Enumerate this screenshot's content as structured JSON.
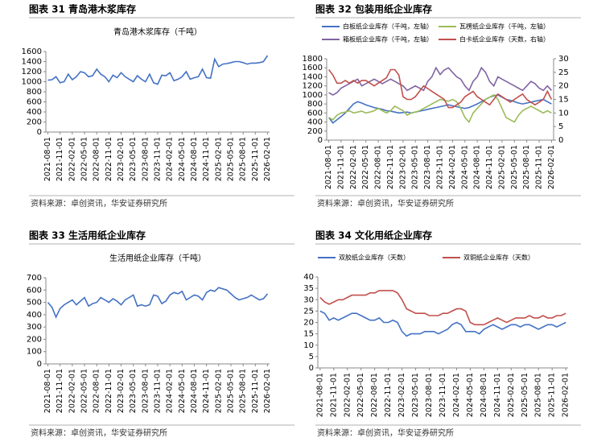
{
  "chart_data": [
    {
      "type": "line",
      "heading": "图表 31 青岛港木浆库存",
      "title": "青岛港木浆库存（千吨）",
      "source": "资料来源：卓创资讯，华安证券研究所",
      "categories": [
        "2021-08-01",
        null,
        null,
        "2021-11-01",
        null,
        null,
        "2022-02-01",
        null,
        null,
        "2022-05-01",
        null,
        null,
        "2022-08-01",
        null,
        null,
        "2022-11-01",
        null,
        null,
        "2023-02-01",
        null,
        null,
        "2023-05-01",
        null,
        null,
        "2023-08-01",
        null,
        null,
        "2023-11-01",
        null,
        null,
        "2024-02-01",
        null,
        null,
        "2024-05-01",
        null,
        null,
        "2024-08-01",
        null,
        null,
        "2024-11-01",
        null,
        null,
        "2025-02-01",
        null,
        null,
        "2025-05-01",
        null,
        null,
        "2025-08-01",
        null,
        null,
        "2025-11-01",
        null,
        null,
        "2026-02-01"
      ],
      "series": [
        {
          "name": "青岛港木浆库存",
          "color": "#4472c4",
          "values": [
            1030,
            1040,
            1100,
            980,
            1000,
            1150,
            1040,
            1100,
            1200,
            1180,
            1100,
            1120,
            1250,
            1150,
            1100,
            1000,
            1130,
            1080,
            1180,
            1100,
            1050,
            1000,
            1120,
            1050,
            1000,
            1150,
            980,
            950,
            1130,
            1120,
            1180,
            1020,
            1050,
            1100,
            1200,
            1050,
            1080,
            1100,
            1250,
            1080,
            1070,
            1450,
            1300,
            1350,
            1360,
            1380,
            1400,
            1400,
            1380,
            1350,
            1370,
            1370,
            1380,
            1400,
            1520
          ]
        }
      ],
      "ylim": [
        0,
        1600
      ],
      "yticks": [
        0,
        200,
        400,
        600,
        800,
        1000,
        1200,
        1400,
        1600
      ]
    },
    {
      "type": "line",
      "heading": "图表 32 包装用纸企业库存",
      "source": "资料来源：卓创资讯，华安证券研究所",
      "categories": [
        "2021-08-01",
        null,
        null,
        "2021-11-01",
        null,
        null,
        "2022-02-01",
        null,
        null,
        "2022-05-01",
        null,
        null,
        "2022-08-01",
        null,
        null,
        "2022-11-01",
        null,
        null,
        "2023-02-01",
        null,
        null,
        "2023-05-01",
        null,
        null,
        "2023-08-01",
        null,
        null,
        "2023-11-01",
        null,
        null,
        "2024-02-01",
        null,
        null,
        "2024-05-01",
        null,
        null,
        "2024-08-01",
        null,
        null,
        "2024-11-01",
        null,
        null,
        "2025-02-01",
        null,
        null,
        "2025-05-01",
        null,
        null,
        "2025-08-01",
        null,
        null,
        "2025-11-01",
        null,
        null,
        "2026-02-01"
      ],
      "series": [
        {
          "name": "白板纸企业库存（千吨，左轴）",
          "color": "#4472c4",
          "values": [
            500,
            380,
            450,
            520,
            600,
            700,
            800,
            850,
            820,
            780,
            750,
            720,
            700,
            680,
            650,
            640,
            620,
            600,
            610,
            620,
            600,
            620,
            640,
            660,
            680,
            700,
            720,
            740,
            760,
            780,
            760,
            740,
            720,
            700,
            720,
            760,
            800,
            850,
            900,
            950,
            980,
            1000,
            950,
            900,
            880,
            850,
            820,
            800,
            820,
            840,
            860,
            880,
            900,
            850,
            800
          ]
        },
        {
          "name": "瓦楞纸企业库存（千吨，左轴）",
          "color": "#9bbb59",
          "values": [
            500,
            450,
            550,
            600,
            620,
            650,
            600,
            620,
            640,
            600,
            620,
            650,
            700,
            650,
            600,
            650,
            750,
            700,
            650,
            550,
            600,
            620,
            650,
            700,
            750,
            800,
            850,
            900,
            880,
            860,
            900,
            850,
            700,
            500,
            400,
            600,
            700,
            800,
            900,
            950,
            1000,
            900,
            700,
            500,
            450,
            400,
            550,
            650,
            700,
            750,
            700,
            650,
            600,
            650,
            600
          ]
        },
        {
          "name": "箱板纸企业库存（千吨，左轴）",
          "color": "#8064a2",
          "values": [
            1050,
            1000,
            1050,
            1150,
            1200,
            1250,
            1300,
            1350,
            1200,
            1250,
            1300,
            1350,
            1300,
            1250,
            1300,
            1350,
            1300,
            1250,
            1200,
            1100,
            1150,
            1200,
            1150,
            1100,
            1300,
            1400,
            1600,
            1450,
            1550,
            1600,
            1500,
            1400,
            1350,
            1200,
            1100,
            1300,
            1400,
            1600,
            1500,
            1300,
            1200,
            1400,
            1350,
            1300,
            1250,
            1200,
            1150,
            1100,
            1200,
            1300,
            1250,
            1150,
            1100,
            1200,
            1100
          ]
        },
        {
          "name": "白卡纸企业库存（天数，右轴）",
          "color": "#c0504d",
          "axis": "y2",
          "values": [
            26,
            24,
            21,
            21,
            22,
            21,
            22,
            21,
            22,
            22,
            21,
            20,
            21,
            22,
            23,
            26,
            26,
            24,
            16,
            15,
            15,
            16,
            18,
            20,
            19,
            18,
            17,
            16,
            15,
            12,
            12,
            13,
            14,
            16,
            17,
            18,
            16,
            15,
            14,
            13,
            15,
            17,
            16,
            15,
            14,
            15,
            16,
            17,
            15,
            14,
            13,
            14,
            15,
            18,
            15
          ]
        }
      ],
      "ylim": [
        0,
        1800
      ],
      "yticks": [
        0,
        200,
        400,
        600,
        800,
        1000,
        1200,
        1400,
        1600,
        1800
      ],
      "y2lim": [
        0,
        30
      ],
      "y2ticks": [
        0,
        5,
        10,
        15,
        20,
        25,
        30
      ]
    },
    {
      "type": "line",
      "heading": "图表 33 生活用纸企业库存",
      "title": "生活用纸企业库存（千吨）",
      "source": "资料来源：卓创资讯，华安证券研究所",
      "categories": [
        "2021-08-01",
        null,
        null,
        "2021-11-01",
        null,
        null,
        "2022-02-01",
        null,
        null,
        "2022-05-01",
        null,
        null,
        "2022-08-01",
        null,
        null,
        "2022-11-01",
        null,
        null,
        "2023-02-01",
        null,
        null,
        "2023-05-01",
        null,
        null,
        "2023-08-01",
        null,
        null,
        "2023-11-01",
        null,
        null,
        "2024-02-01",
        null,
        null,
        "2024-05-01",
        null,
        null,
        "2024-08-01",
        null,
        null,
        "2024-11-01",
        null,
        null,
        "2025-02-01",
        null,
        null,
        "2025-05-01",
        null,
        null,
        "2025-08-01",
        null,
        null,
        "2025-11-01",
        null,
        null,
        "2026-02-01"
      ],
      "series": [
        {
          "name": "生活用纸企业库存",
          "color": "#4472c4",
          "values": [
            500,
            460,
            380,
            450,
            480,
            500,
            520,
            480,
            510,
            540,
            470,
            490,
            500,
            540,
            520,
            500,
            530,
            510,
            480,
            520,
            540,
            560,
            470,
            480,
            470,
            480,
            560,
            550,
            490,
            510,
            560,
            580,
            570,
            590,
            520,
            540,
            560,
            550,
            520,
            580,
            600,
            590,
            620,
            610,
            600,
            570,
            540,
            520,
            530,
            540,
            560,
            540,
            520,
            530,
            570
          ]
        }
      ],
      "ylim": [
        0,
        700
      ],
      "yticks": [
        0,
        100,
        200,
        300,
        400,
        500,
        600,
        700
      ]
    },
    {
      "type": "line",
      "heading": "图表 34 文化用纸企业库存",
      "source": "资料来源：卓创资讯，华安证券研究所",
      "categories": [
        "2021-08-01",
        null,
        null,
        "2021-11-01",
        null,
        null,
        "2022-02-01",
        null,
        null,
        "2022-05-01",
        null,
        null,
        "2022-08-01",
        null,
        null,
        "2022-11-01",
        null,
        null,
        "2023-02-01",
        null,
        null,
        "2023-05-01",
        null,
        null,
        "2023-08-01",
        null,
        null,
        "2023-11-01",
        null,
        null,
        "2024-02-01",
        null,
        null,
        "2024-05-01",
        null,
        null,
        "2024-08-01",
        null,
        null,
        "2024-11-01",
        null,
        null,
        "2025-02-01",
        null,
        null,
        "2025-05-01",
        null,
        null,
        "2025-08-01",
        null,
        null,
        "2025-11-01",
        null,
        null,
        "2026-02-01"
      ],
      "series": [
        {
          "name": "双胶纸企业库存（天数）",
          "color": "#4472c4",
          "values": [
            25,
            24,
            21,
            22,
            21,
            22,
            23,
            24,
            24,
            23,
            22,
            21,
            21,
            22,
            20,
            20,
            21,
            20,
            16,
            14,
            15,
            15,
            15,
            16,
            16,
            16,
            15,
            16,
            17,
            19,
            20,
            19,
            16,
            16,
            16,
            15,
            17,
            18,
            19,
            18,
            17,
            18,
            19,
            19,
            18,
            19,
            19,
            18,
            17,
            18,
            19,
            19,
            18,
            19,
            20
          ]
        },
        {
          "name": "双铜纸企业库存（天数）",
          "color": "#c0504d",
          "values": [
            31,
            29,
            28,
            29,
            30,
            30,
            31,
            32,
            32,
            32,
            32,
            33,
            33,
            34,
            34,
            34,
            34,
            33,
            30,
            26,
            25,
            24,
            24,
            24,
            23,
            23,
            23,
            24,
            24,
            25,
            26,
            26,
            25,
            20,
            19,
            19,
            19,
            20,
            21,
            22,
            21,
            20,
            21,
            22,
            22,
            22,
            23,
            22,
            22,
            23,
            22,
            22,
            23,
            23,
            24
          ]
        }
      ],
      "ylim": [
        0,
        40
      ],
      "yticks": [
        0,
        5,
        10,
        15,
        20,
        25,
        30,
        35,
        40
      ]
    }
  ]
}
